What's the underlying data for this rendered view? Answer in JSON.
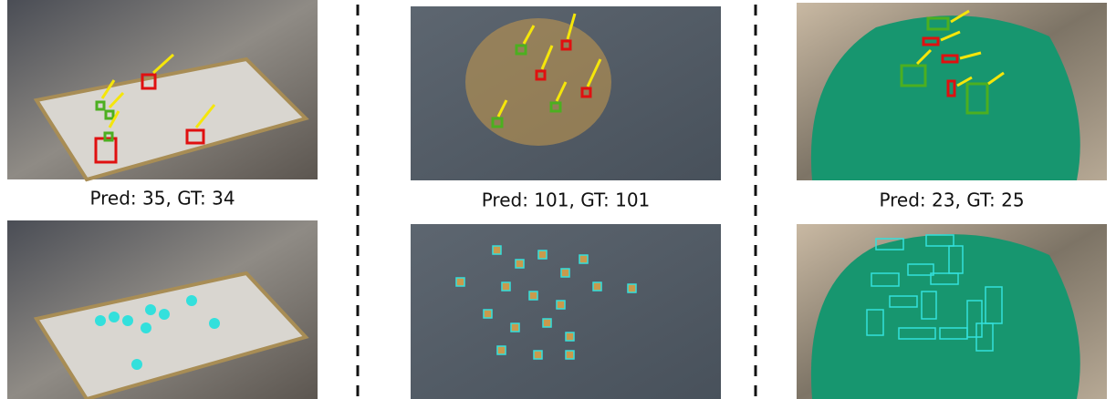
{
  "panels": [
    {
      "caption": "Pred: 35, GT: 34"
    },
    {
      "caption": "Pred: 101, GT: 101"
    },
    {
      "caption": "Pred: 23, GT: 25"
    }
  ]
}
